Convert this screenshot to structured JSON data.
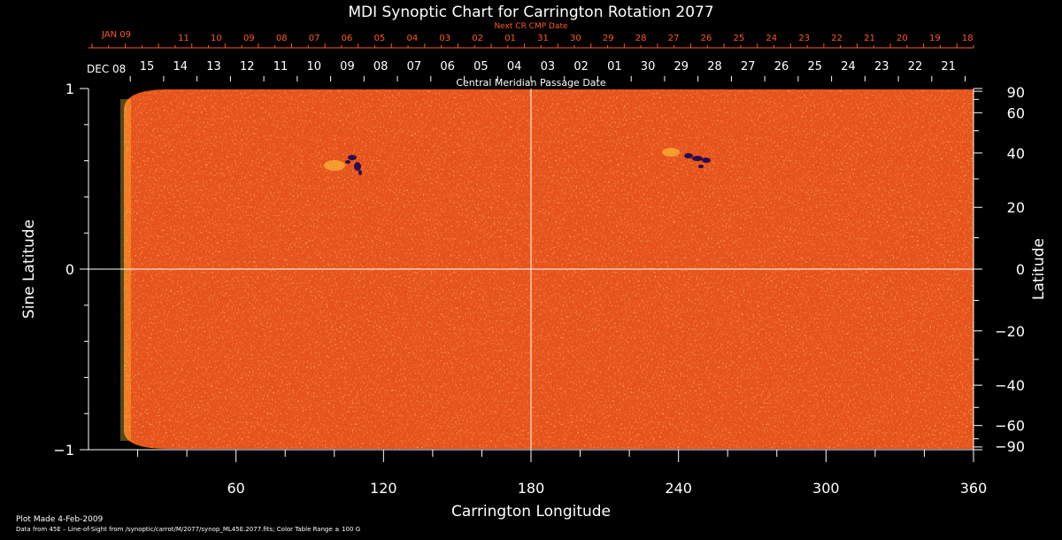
{
  "chart_data": {
    "type": "heatmap",
    "title": "MDI Synoptic Chart for Carrington Rotation 2077",
    "xlabel": "Carrington Longitude",
    "ylabel_left": "Sine Latitude",
    "ylabel_right": "Latitude",
    "xlim": [
      0,
      360
    ],
    "ylim": [
      -1,
      1
    ],
    "x_tick_labels": [
      "60",
      "120",
      "180",
      "240",
      "300",
      "360"
    ],
    "y_left_tick_labels": [
      "1",
      "0",
      "−1"
    ],
    "y_right_tick_labels": [
      "90",
      "60",
      "40",
      "20",
      "0",
      "−20",
      "−40",
      "−60",
      "−90"
    ],
    "next_cr_axis_label": "Next CR CMP Date",
    "next_cr_month_label": "JAN 09",
    "next_cr_dates": [
      "11",
      "10",
      "09",
      "08",
      "07",
      "06",
      "05",
      "04",
      "03",
      "02",
      "01",
      "31",
      "30",
      "29",
      "28",
      "27",
      "26",
      "25",
      "24",
      "23",
      "22",
      "21",
      "20",
      "19",
      "18"
    ],
    "cmp_axis_label": "Central Meridian Passage Date",
    "cmp_month_label": "DEC 08",
    "cmp_dates": [
      "15",
      "14",
      "13",
      "12",
      "11",
      "10",
      "09",
      "08",
      "07",
      "06",
      "05",
      "04",
      "03",
      "02",
      "01",
      "30",
      "29",
      "28",
      "27",
      "26",
      "25",
      "24",
      "23",
      "22",
      "21"
    ],
    "color_range_gauss": 100,
    "colors": {
      "background": "#000000",
      "field_base": "#e8521a",
      "positive": "#ffd23c",
      "negative": "#2a0a50",
      "next_cr_text": "#ff5a1e",
      "text": "#ffffff"
    },
    "grid": false
  },
  "footer": {
    "plot_made": "Plot Made  4-Feb-2009",
    "data_source": "Data from 45E – Line-of-Sight from /synoptic/carrot/M/2077/synop_ML45E.2077.fits; Color Table Range ± 100 G"
  }
}
